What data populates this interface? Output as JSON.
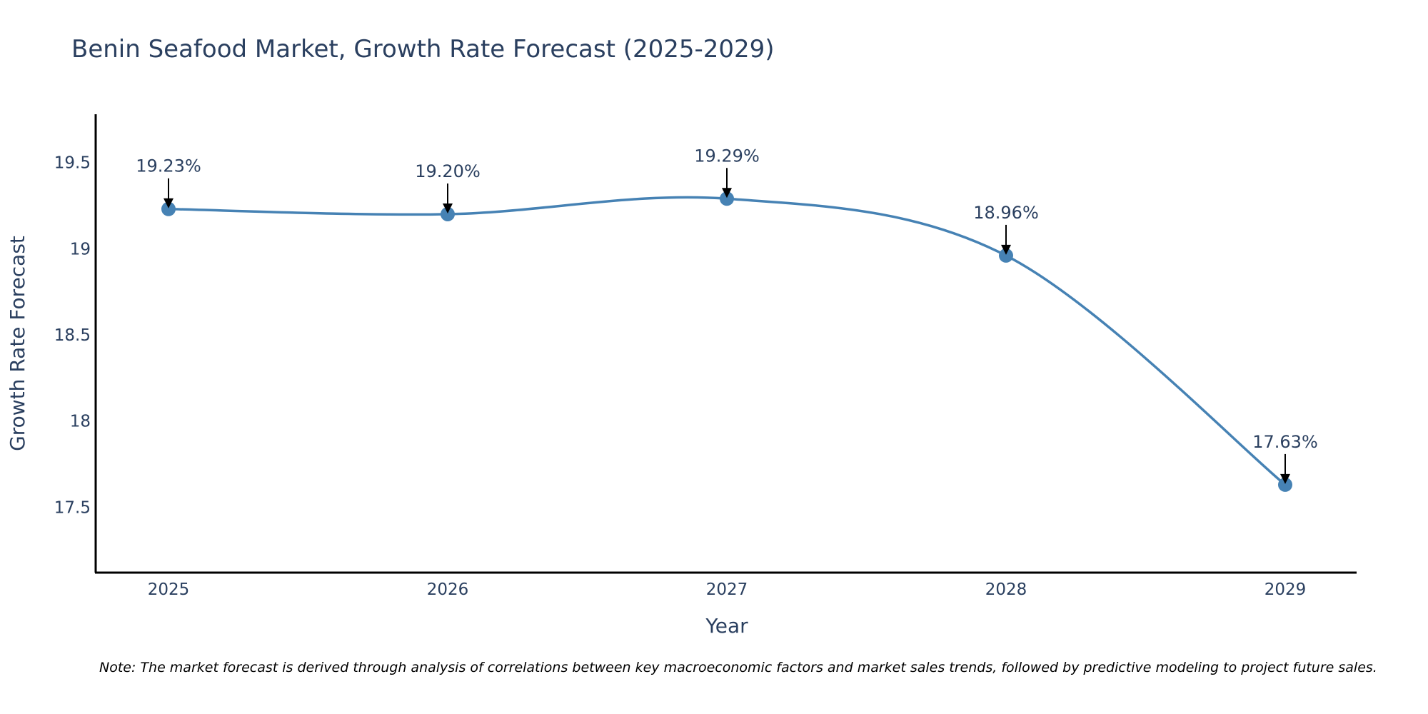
{
  "chart_data": {
    "type": "line",
    "title": "Benin Seafood Market, Growth Rate Forecast (2025-2029)",
    "xlabel": "Year",
    "ylabel": "Growth Rate Forecast",
    "categories": [
      "2025",
      "2026",
      "2027",
      "2028",
      "2029"
    ],
    "values": [
      19.23,
      19.2,
      19.29,
      18.96,
      17.63
    ],
    "data_labels": [
      "19.23%",
      "19.20%",
      "19.29%",
      "18.96%",
      "17.63%"
    ],
    "y_ticks": [
      17.5,
      18,
      18.5,
      19,
      19.5
    ],
    "y_tick_labels": [
      "17.5",
      "18",
      "18.5",
      "19",
      "19.5"
    ],
    "ylim": [
      17.12,
      19.78
    ],
    "grid": false,
    "line_shape": "spline",
    "note": "Note: The market forecast is derived through analysis of correlations between key macroeconomic factors and market sales trends, followed by predictive modeling to project future sales."
  },
  "colors": {
    "line": "#4682b4",
    "marker": "#4682b4",
    "axis": "#000000",
    "text": "#2a3f5f",
    "arrow": "#000000"
  }
}
